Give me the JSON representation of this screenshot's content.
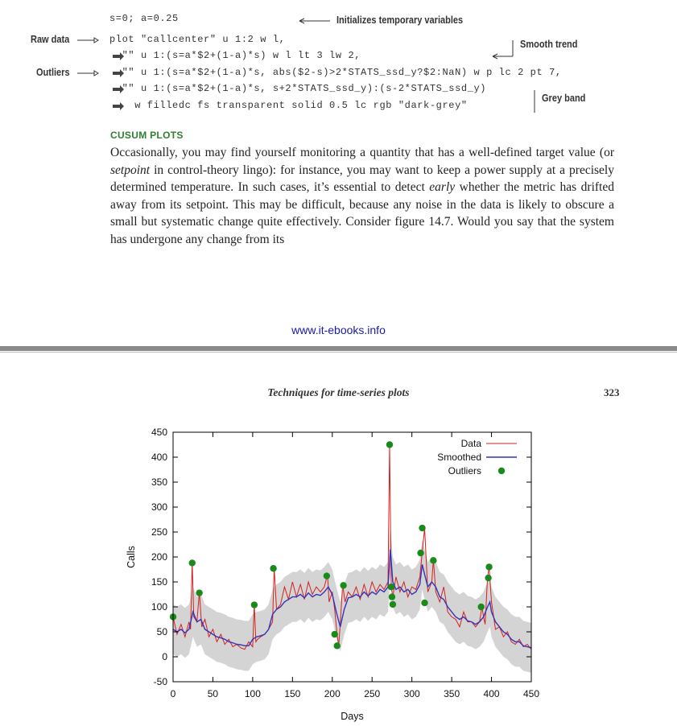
{
  "code": {
    "lines": [
      "s=0; a=0.25",
      "plot \"callcenter\" u 1:2 w l,",
      "  \"\" u 1:(s=a*$2+(1-a)*s) w l lt 3 lw 2,",
      "  \"\" u 1:(s=a*$2+(1-a)*s, abs($2-s)>2*STATS_ssd_y?$2:NaN) w p lc 2 pt 7,",
      "  \"\" u 1:(s=a*$2+(1-a)*s, s+2*STATS_ssd_y):(s-2*STATS_ssd_y)",
      "    w filledc fs transparent solid 0.5 lc rgb \"dark-grey\""
    ]
  },
  "annotations": {
    "initializes": "Initializes temporary variables",
    "raw_data": "Raw data",
    "smooth_trend": "Smooth trend",
    "outliers": "Outliers",
    "grey_band": "Grey band"
  },
  "section": {
    "heading": "CUSUM PLOTS",
    "paragraph": [
      {
        "t": "Occasionally, you may find yourself monitoring a quantity that has a well-defined target value (or "
      },
      {
        "t": "setpoint",
        "i": true
      },
      {
        "t": " in control-theory lingo): for instance, you may want to keep a power supply at a precisely determined temperature. In such cases, it’s essential to detect "
      },
      {
        "t": "early",
        "i": true
      },
      {
        "t": " whether the metric has drifted away from its setpoint. This may be difficult, because any noise in the data is likely to obscure a small but systematic change quite effectively. Consider figure 14.7. Would you say that the system has undergone any change from its"
      }
    ]
  },
  "footer": {
    "url": "www.it-ebooks.info"
  },
  "next_page": {
    "running_head": "Techniques for time-series plots",
    "page_number": "323"
  },
  "colors": {
    "data_line": "#d42020",
    "smooth_line": "#3434b8",
    "outlier": "#1a8a1a",
    "band": "#cfcfcf",
    "section_heading": "#2f7f2f",
    "url": "#1a1aa8"
  },
  "chart_data": {
    "type": "line",
    "xlabel": "Days",
    "ylabel": "Calls",
    "xlim": [
      0,
      450
    ],
    "ylim": [
      -50,
      450
    ],
    "xticks": [
      0,
      50,
      100,
      150,
      200,
      250,
      300,
      350,
      400,
      450
    ],
    "yticks": [
      -50,
      0,
      50,
      100,
      150,
      200,
      250,
      300,
      350,
      400,
      450
    ],
    "legend": {
      "position": "top-right",
      "entries": [
        "Data",
        "Smoothed",
        "Outliers"
      ]
    },
    "series": [
      {
        "name": "Data",
        "x": [
          0,
          5,
          10,
          15,
          20,
          22,
          24,
          26,
          30,
          33,
          36,
          40,
          45,
          50,
          55,
          60,
          65,
          70,
          75,
          80,
          85,
          90,
          95,
          100,
          102,
          104,
          106,
          110,
          115,
          120,
          125,
          127,
          130,
          135,
          140,
          145,
          150,
          155,
          160,
          165,
          170,
          175,
          180,
          185,
          190,
          194,
          196,
          200,
          203,
          206,
          208,
          210,
          213,
          216,
          220,
          225,
          230,
          235,
          240,
          245,
          250,
          255,
          260,
          265,
          270,
          272,
          274,
          276,
          280,
          285,
          290,
          295,
          300,
          305,
          310,
          313,
          316,
          320,
          325,
          327,
          330,
          335,
          340,
          345,
          350,
          355,
          360,
          365,
          370,
          375,
          380,
          385,
          388,
          390,
          392,
          395,
          397,
          400,
          405,
          410,
          415,
          420,
          425,
          430,
          435,
          440,
          445,
          450
        ],
        "y": [
          80,
          45,
          65,
          40,
          70,
          55,
          190,
          80,
          70,
          130,
          60,
          75,
          40,
          55,
          30,
          45,
          25,
          35,
          20,
          25,
          18,
          15,
          30,
          20,
          105,
          30,
          35,
          40,
          45,
          55,
          70,
          178,
          95,
          105,
          140,
          115,
          150,
          120,
          145,
          115,
          150,
          125,
          140,
          130,
          140,
          165,
          110,
          130,
          95,
          45,
          22,
          65,
          145,
          110,
          130,
          120,
          140,
          115,
          145,
          120,
          150,
          130,
          145,
          135,
          150,
          425,
          140,
          120,
          160,
          130,
          150,
          120,
          140,
          135,
          160,
          210,
          258,
          130,
          150,
          195,
          130,
          110,
          140,
          90,
          80,
          75,
          60,
          90,
          70,
          70,
          60,
          70,
          100,
          80,
          65,
          158,
          180,
          110,
          55,
          60,
          40,
          50,
          30,
          25,
          35,
          20,
          25,
          15
        ]
      },
      {
        "name": "Smoothed",
        "x": [
          0,
          5,
          10,
          15,
          20,
          25,
          30,
          35,
          40,
          45,
          50,
          55,
          60,
          65,
          70,
          75,
          80,
          85,
          90,
          95,
          100,
          105,
          110,
          115,
          120,
          125,
          130,
          135,
          140,
          145,
          150,
          155,
          160,
          165,
          170,
          175,
          180,
          185,
          190,
          195,
          200,
          205,
          210,
          215,
          220,
          225,
          230,
          235,
          240,
          245,
          250,
          255,
          260,
          265,
          270,
          273,
          276,
          280,
          285,
          290,
          295,
          300,
          305,
          310,
          313,
          316,
          320,
          325,
          330,
          335,
          340,
          345,
          350,
          355,
          360,
          365,
          370,
          375,
          380,
          385,
          390,
          395,
          398,
          400,
          405,
          410,
          415,
          420,
          425,
          430,
          435,
          440,
          445,
          450
        ],
        "y": [
          55,
          50,
          55,
          48,
          55,
          90,
          70,
          75,
          55,
          50,
          45,
          40,
          38,
          35,
          30,
          28,
          25,
          24,
          22,
          22,
          35,
          40,
          42,
          45,
          55,
          85,
          95,
          100,
          110,
          115,
          120,
          120,
          125,
          118,
          128,
          120,
          125,
          123,
          130,
          140,
          125,
          90,
          60,
          95,
          118,
          120,
          125,
          120,
          130,
          122,
          130,
          125,
          135,
          130,
          140,
          215,
          150,
          135,
          140,
          130,
          135,
          125,
          130,
          145,
          185,
          165,
          140,
          150,
          140,
          120,
          115,
          100,
          90,
          80,
          75,
          80,
          72,
          70,
          65,
          70,
          80,
          100,
          110,
          90,
          70,
          60,
          50,
          45,
          35,
          30,
          30,
          22,
          20,
          18
        ]
      },
      {
        "name": "Outliers",
        "points": [
          [
            0,
            80
          ],
          [
            24,
            188
          ],
          [
            33,
            128
          ],
          [
            102,
            104
          ],
          [
            126,
            177
          ],
          [
            193,
            162
          ],
          [
            203,
            45
          ],
          [
            206,
            22
          ],
          [
            214,
            143
          ],
          [
            272,
            425
          ],
          [
            274,
            140
          ],
          [
            275,
            120
          ],
          [
            276,
            105
          ],
          [
            311,
            208
          ],
          [
            313,
            258
          ],
          [
            316,
            108
          ],
          [
            327,
            193
          ],
          [
            387,
            100
          ],
          [
            396,
            158
          ],
          [
            397,
            180
          ]
        ]
      }
    ],
    "band": {
      "halfwidth": 50,
      "around": "Smoothed"
    }
  }
}
